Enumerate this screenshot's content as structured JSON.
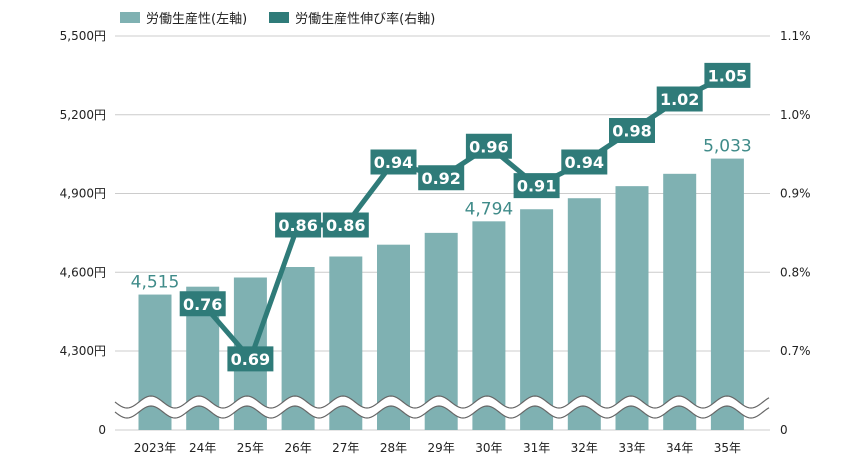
{
  "legend": {
    "bar_label": "労働生産性(左軸)",
    "line_label": "労働生産性伸び率(右軸)"
  },
  "colors": {
    "bar": "#7fb1b2",
    "line": "#2f7b79",
    "grid": "#cccccc",
    "bar_label": "#3f8b89"
  },
  "chart_data": {
    "type": "bar",
    "categories": [
      "2023年",
      "24年",
      "25年",
      "26年",
      "27年",
      "28年",
      "29年",
      "30年",
      "31年",
      "32年",
      "33年",
      "34年",
      "35年"
    ],
    "series": [
      {
        "name": "労働生産性(左軸)",
        "type": "bar",
        "axis": "left",
        "values": [
          4515,
          4545,
          4580,
          4620,
          4660,
          4705,
          4750,
          4794,
          4840,
          4882,
          4928,
          4975,
          5033
        ],
        "labels": [
          "4,515",
          "",
          "",
          "",
          "",
          "",
          "",
          "4,794",
          "",
          "",
          "",
          "",
          "5,033"
        ]
      },
      {
        "name": "労働生産性伸び率(右軸)",
        "type": "line",
        "axis": "right",
        "values": [
          null,
          0.76,
          0.69,
          0.86,
          0.86,
          0.94,
          0.92,
          0.96,
          0.91,
          0.94,
          0.98,
          1.02,
          1.05
        ],
        "labels": [
          "",
          "0.76",
          "0.69",
          "0.86",
          "0.86",
          "0.94",
          "0.92",
          "0.96",
          "0.91",
          "0.94",
          "0.98",
          "1.02",
          "1.05"
        ]
      }
    ],
    "left_axis": {
      "ticks": [
        4300,
        4600,
        4900,
        5200,
        5500
      ],
      "tick_labels": [
        "4,300円",
        "4,600円",
        "4,900円",
        "5,200円",
        "5,500円"
      ],
      "zero_label": "0",
      "ylim": [
        4300,
        5500
      ],
      "axis_break": true
    },
    "right_axis": {
      "ticks": [
        0.7,
        0.8,
        0.9,
        1.0,
        1.1
      ],
      "tick_labels": [
        "0.7%",
        "0.8%",
        "0.9%",
        "1.0%",
        "1.1%"
      ],
      "zero_label": "0",
      "ylim": [
        0.7,
        1.1
      ]
    },
    "grid": true
  }
}
